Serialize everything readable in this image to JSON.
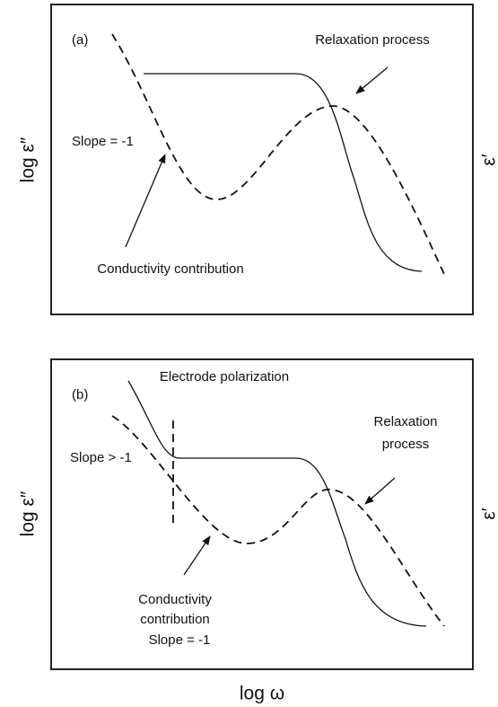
{
  "panels": [
    {
      "label": "(a)",
      "y_label": "log ε″",
      "y2_label": "ε′",
      "relaxation": [
        "Relaxation process"
      ],
      "slope": "Slope = -1",
      "conductivity": [
        "Conductivity contribution"
      ]
    },
    {
      "label": "(b)",
      "y_label": "log ε″",
      "y2_label": "ε′",
      "electrode": "Electrode polarization",
      "relaxation": [
        "Relaxation",
        "process"
      ],
      "slope": "Slope > -1",
      "conductivity": [
        "Conductivity",
        "contribution",
        "Slope = -1"
      ]
    }
  ],
  "x_label": "log ω"
}
